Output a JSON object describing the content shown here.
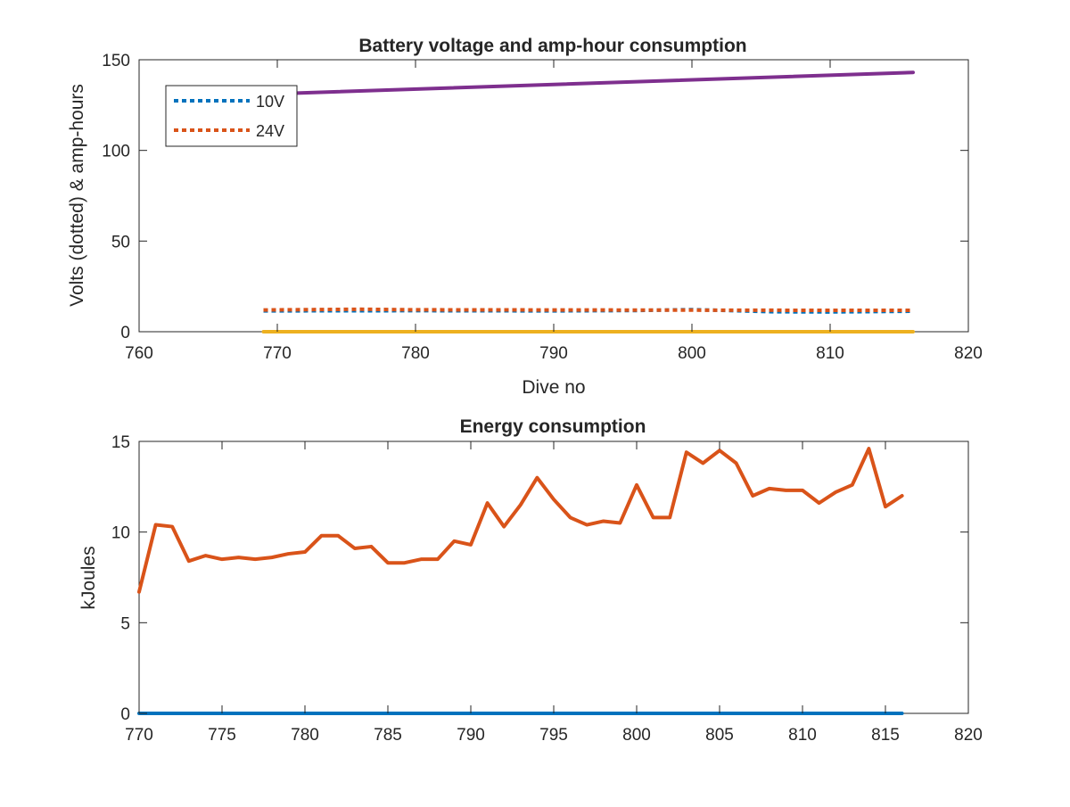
{
  "colors": {
    "blue": "#0072BD",
    "orange": "#D95319",
    "yellow": "#EDB120",
    "purple": "#7E2F8E",
    "axis": "#262626"
  },
  "chart_data": [
    {
      "type": "line",
      "title": "Battery voltage and amp-hour consumption",
      "xlabel": "Dive no",
      "ylabel": "Volts (dotted) & amp-hours",
      "xlim": [
        760,
        820
      ],
      "ylim": [
        0,
        150
      ],
      "xticks": [
        "760",
        "770",
        "780",
        "790",
        "800",
        "810",
        "820"
      ],
      "yticks": [
        "0",
        "50",
        "100",
        "150"
      ],
      "grid": false,
      "legend_position": "top-left",
      "x": [
        769,
        816
      ],
      "series": [
        {
          "name": "10V",
          "style": "dotted",
          "color": "#0072BD",
          "x": [
            769,
            780,
            790,
            796,
            800,
            806,
            810,
            816
          ],
          "values": [
            11.5,
            11.6,
            11.5,
            11.7,
            12.2,
            11.0,
            10.9,
            11.3
          ]
        },
        {
          "name": "24V",
          "style": "dotted",
          "color": "#D95319",
          "x": [
            769,
            776,
            780,
            790,
            800,
            810,
            816
          ],
          "values": [
            12.0,
            12.4,
            12.1,
            12.0,
            11.9,
            11.8,
            11.8
          ]
        },
        {
          "style": "solid",
          "color": "#EDB120",
          "x": [
            769,
            816
          ],
          "values": [
            0,
            0
          ]
        },
        {
          "style": "solid",
          "color": "#7E2F8E",
          "x": [
            769,
            816
          ],
          "values": [
            131,
            143
          ]
        }
      ]
    },
    {
      "type": "line",
      "title": "Energy consumption",
      "xlabel": "",
      "ylabel": "kJoules",
      "xlim": [
        770,
        820
      ],
      "ylim": [
        0,
        15
      ],
      "xticks": [
        "770",
        "775",
        "780",
        "785",
        "790",
        "795",
        "800",
        "805",
        "810",
        "815",
        "820"
      ],
      "yticks": [
        "0",
        "5",
        "10",
        "15"
      ],
      "grid": false,
      "x": [
        770,
        771,
        772,
        773,
        774,
        775,
        776,
        777,
        778,
        779,
        780,
        781,
        782,
        783,
        784,
        785,
        786,
        787,
        788,
        789,
        790,
        791,
        792,
        793,
        794,
        795,
        796,
        797,
        798,
        799,
        800,
        801,
        802,
        803,
        804,
        805,
        806,
        807,
        808,
        809,
        810,
        811,
        812,
        813,
        814,
        815,
        816
      ],
      "series": [
        {
          "style": "solid",
          "color": "#D95319",
          "values": [
            6.7,
            10.4,
            10.3,
            8.4,
            8.7,
            8.5,
            8.6,
            8.5,
            8.6,
            8.8,
            8.9,
            9.8,
            9.8,
            9.1,
            9.2,
            8.3,
            8.3,
            8.5,
            8.5,
            9.5,
            9.3,
            11.6,
            10.3,
            11.5,
            13.0,
            11.8,
            10.8,
            10.4,
            10.6,
            10.5,
            12.6,
            10.8,
            10.8,
            14.4,
            13.8,
            14.5,
            13.8,
            12.0,
            12.4,
            12.3,
            12.3,
            11.6,
            12.2,
            12.6,
            14.6,
            11.4,
            12.0
          ]
        },
        {
          "style": "solid",
          "color": "#0072BD",
          "x": [
            770,
            816
          ],
          "values": [
            0,
            0
          ]
        }
      ]
    }
  ]
}
